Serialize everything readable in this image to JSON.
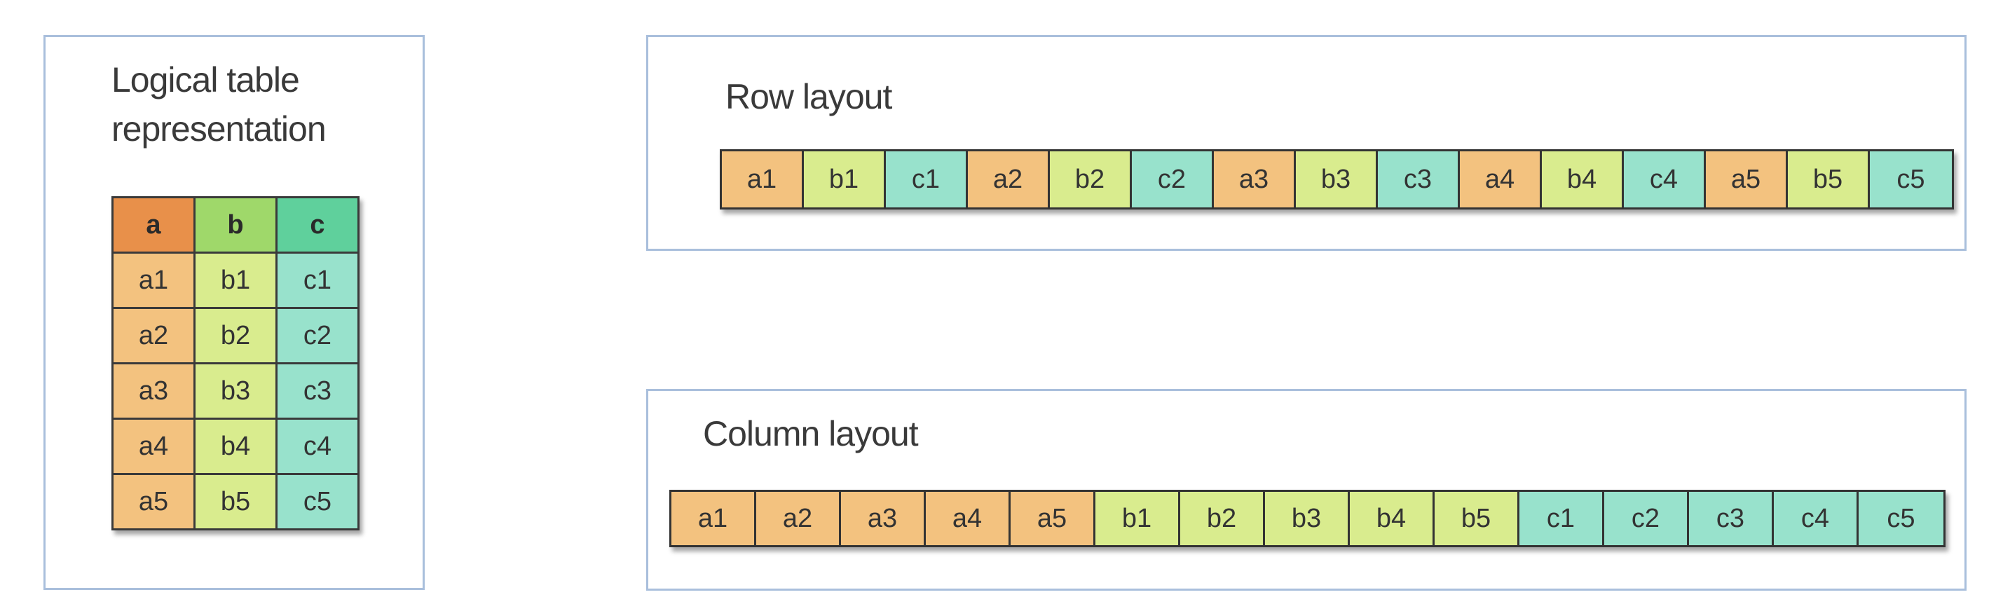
{
  "logical_panel": {
    "title": "Logical table representation",
    "headers": [
      "a",
      "b",
      "c"
    ],
    "rows": [
      [
        "a1",
        "b1",
        "c1"
      ],
      [
        "a2",
        "b2",
        "c2"
      ],
      [
        "a3",
        "b3",
        "c3"
      ],
      [
        "a4",
        "b4",
        "c4"
      ],
      [
        "a5",
        "b5",
        "c5"
      ]
    ]
  },
  "row_panel": {
    "title": "Row layout",
    "cells": [
      "a1",
      "b1",
      "c1",
      "a2",
      "b2",
      "c2",
      "a3",
      "b3",
      "c3",
      "a4",
      "b4",
      "c4",
      "a5",
      "b5",
      "c5"
    ]
  },
  "column_panel": {
    "title": "Column layout",
    "cells": [
      "a1",
      "a2",
      "a3",
      "a4",
      "a5",
      "b1",
      "b2",
      "b3",
      "b4",
      "b5",
      "c1",
      "c2",
      "c3",
      "c4",
      "c5"
    ]
  },
  "colors": {
    "header_a": "#e8904a",
    "header_b": "#9fd86a",
    "header_c": "#5fd09c",
    "col_a": "#f3c27f",
    "col_b": "#d9ec8e",
    "col_c": "#98e2cc",
    "panel_border": "#a9bfdc"
  }
}
